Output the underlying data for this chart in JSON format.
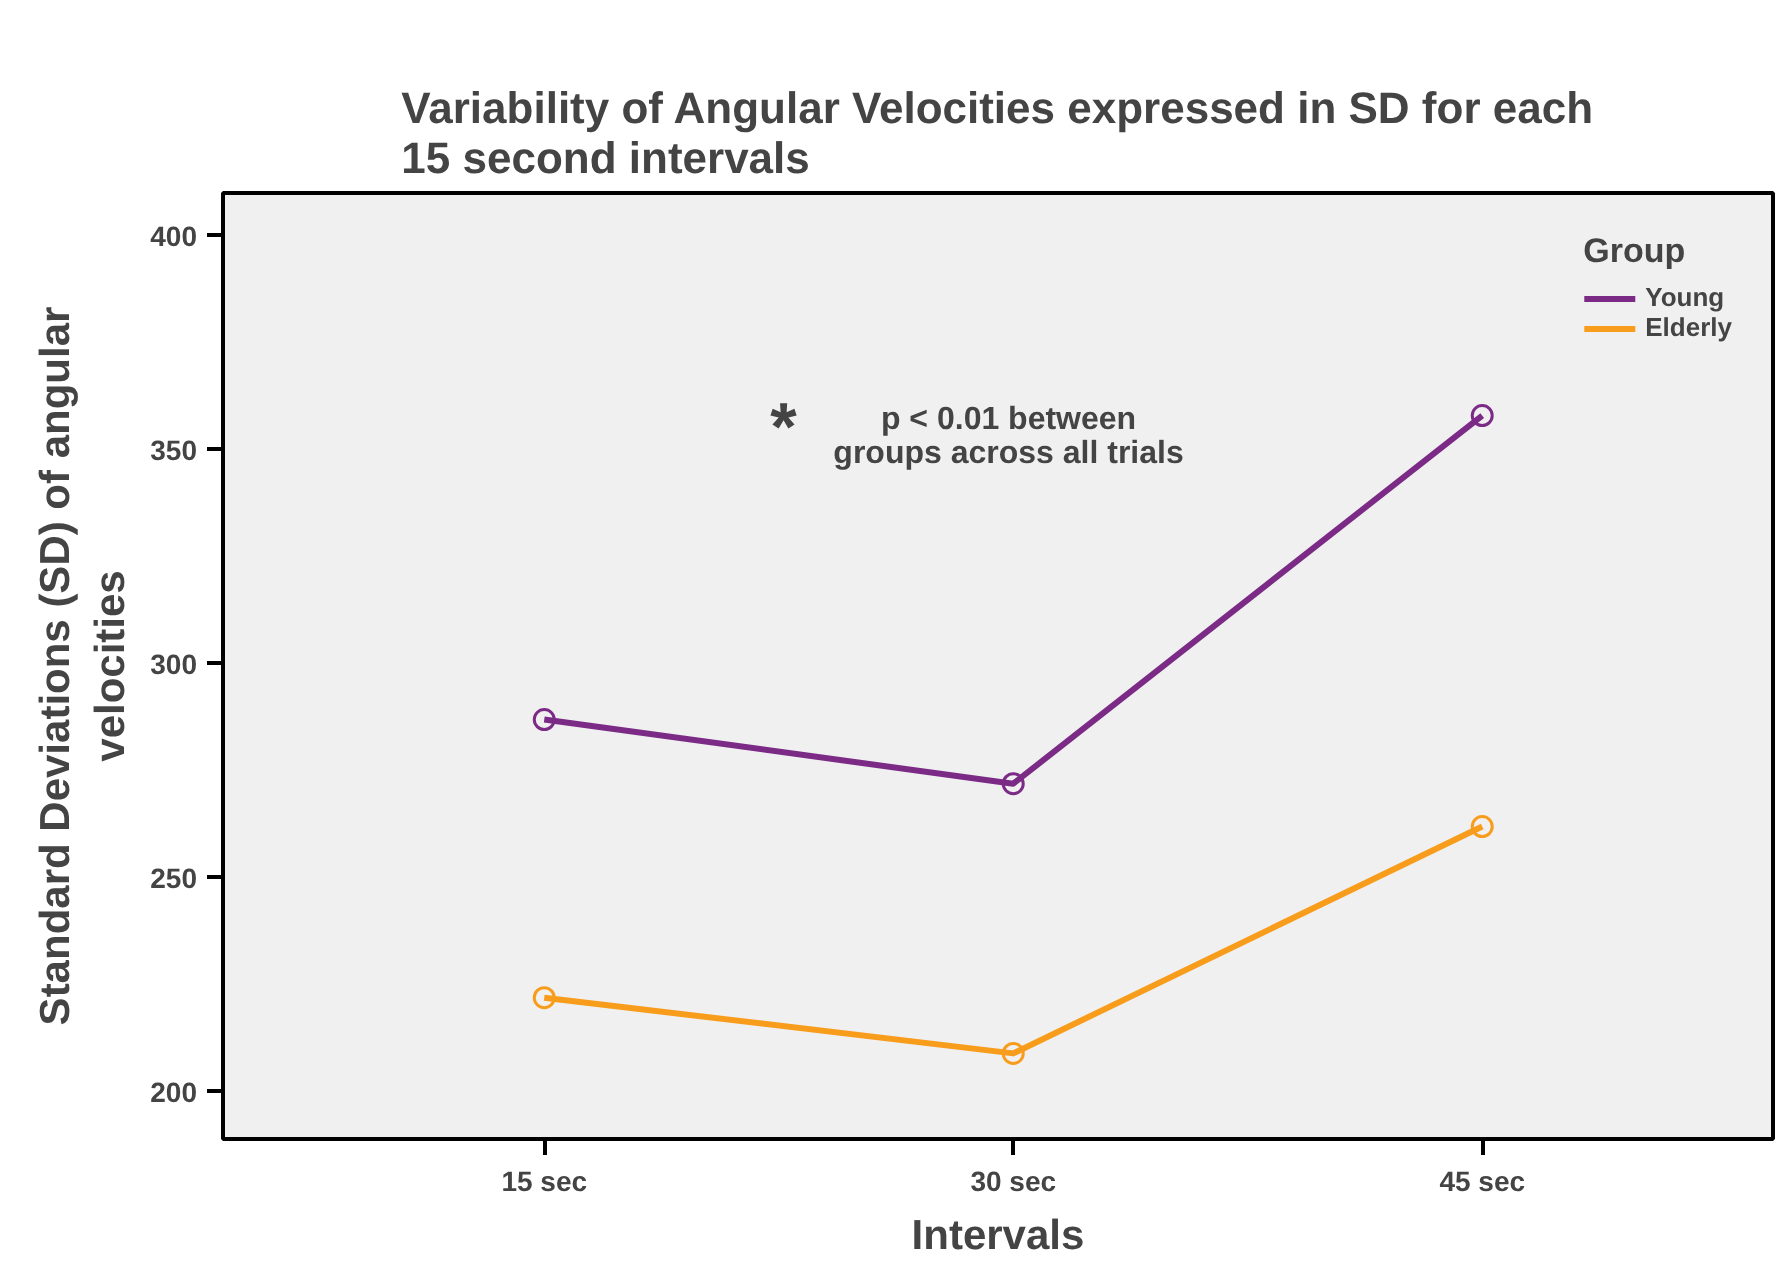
{
  "chart_data": {
    "type": "line",
    "title": "Variability of Angular Velocities expressed in SD for each\n15 second intervals",
    "xlabel": "Intervals",
    "ylabel": "Standard Deviations (SD) of angular\nvelocities",
    "categories": [
      "15 sec",
      "30 sec",
      "45 sec"
    ],
    "series": [
      {
        "name": "Young",
        "color": "#7b2a86",
        "values": [
          287,
          272,
          358
        ]
      },
      {
        "name": "Elderly",
        "color": "#f89c1c",
        "values": [
          222,
          209,
          262
        ]
      }
    ],
    "ylim": [
      189,
      410
    ],
    "yticks": [
      200,
      250,
      300,
      350,
      400
    ],
    "legend": "top right",
    "legend_title": "Group",
    "marker": "circle",
    "grid": false,
    "annotations": [
      "*",
      "p < 0.01 between\ngroups across all trials"
    ]
  }
}
